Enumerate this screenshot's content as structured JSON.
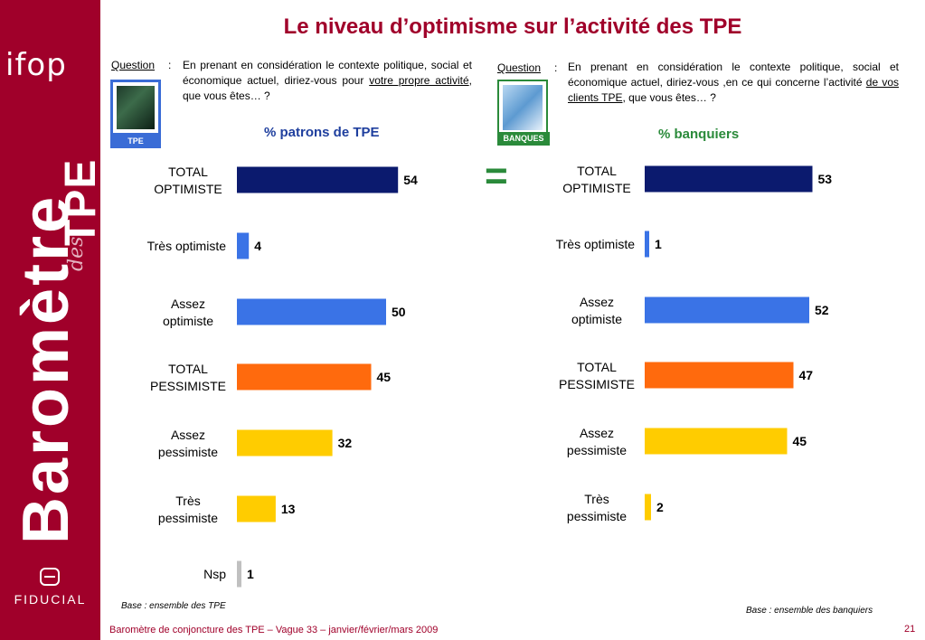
{
  "title": "Le niveau d’optimisme sur l’activité des TPE",
  "sidebar": {
    "logo_top": "ifop",
    "brand_main": "Baromètre",
    "brand_des": "des",
    "brand_tpe": "TPE",
    "logo_bottom": "FIDUCIAL"
  },
  "questions": {
    "left": {
      "label": "Question",
      "colon": ":",
      "text_before": "En prenant en considération le contexte politique, social et économique actuel, diriez-vous pour ",
      "text_underlined": "votre propre activité",
      "text_after": ", que vous êtes… ?",
      "badge": "TPE"
    },
    "right": {
      "label": "Question",
      "colon": ":",
      "text_before": "En prenant en considération le contexte politique, social et économique actuel, diriez-vous ,en ce qui concerne l’activité ",
      "text_underlined": "de vos clients TPE",
      "text_after": ", que vous êtes… ?",
      "badge": "BANQUES"
    }
  },
  "equal_sign": "=",
  "base_left": "Base : ensemble des TPE",
  "base_right": "Base : ensemble des banquiers",
  "footer": "Baromètre de conjoncture des TPE – Vague 33 – janvier/février/mars 2009",
  "page_number": "21",
  "colors": {
    "brand": "#a0002a",
    "navy": "#0b1a6e",
    "blue": "#3a73e6",
    "orange": "#ff6a0d",
    "yellow": "#ffcc00",
    "grey": "#c0c0c0",
    "green": "#2a8a3a"
  },
  "chart_data": [
    {
      "type": "bar",
      "orientation": "horizontal",
      "title": "% patrons de TPE",
      "categories": [
        "TOTAL OPTIMISTE",
        "Très optimiste",
        "Assez optimiste",
        "TOTAL PESSIMISTE",
        "Assez pessimiste",
        "Très pessimiste",
        "Nsp"
      ],
      "values": [
        54,
        4,
        50,
        45,
        32,
        13,
        1
      ],
      "colors": [
        "#0b1a6e",
        "#3a73e6",
        "#3a73e6",
        "#ff6a0d",
        "#ffcc00",
        "#ffcc00",
        "#c0c0c0"
      ],
      "xlim": [
        0,
        100
      ]
    },
    {
      "type": "bar",
      "orientation": "horizontal",
      "title": "% banquiers",
      "categories": [
        "TOTAL OPTIMISTE",
        "Très optimiste",
        "Assez optimiste",
        "TOTAL PESSIMISTE",
        "Assez pessimiste",
        "Très pessimiste"
      ],
      "values": [
        53,
        1,
        52,
        47,
        45,
        2
      ],
      "colors": [
        "#0b1a6e",
        "#3a73e6",
        "#3a73e6",
        "#ff6a0d",
        "#ffcc00",
        "#ffcc00"
      ],
      "xlim": [
        0,
        100
      ]
    }
  ]
}
